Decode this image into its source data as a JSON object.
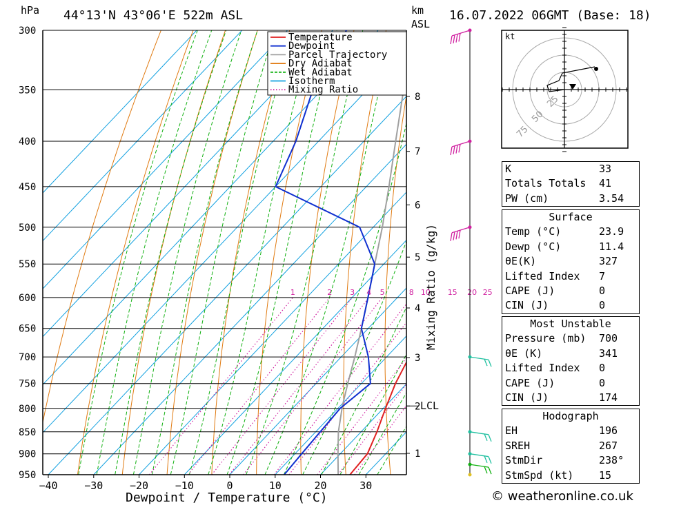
{
  "header": {
    "left_unit": "hPa",
    "location": "44°13'N  43°06'E  522m  ASL",
    "km_label": "km",
    "asl_label": "ASL",
    "datetime": "16.07.2022  06GMT  (Base: 18)"
  },
  "chart_data": {
    "type": "skew-t",
    "xlabel": "Dewpoint / Temperature (°C)",
    "ylabel_right": "Mixing Ratio (g/kg)",
    "pressure_levels": [
      300,
      350,
      400,
      450,
      500,
      550,
      600,
      650,
      700,
      750,
      800,
      850,
      900,
      950
    ],
    "temp_ticks": [
      -40,
      -30,
      -20,
      -10,
      0,
      10,
      20,
      30
    ],
    "height_ticks_km": [
      1,
      2,
      3,
      4,
      5,
      6,
      7,
      8
    ],
    "lcl_label": "LCL",
    "lcl_pressure": 795,
    "mixing_ratio_labels": [
      "1",
      "2",
      "3",
      "4",
      "5",
      "8",
      "10",
      "15",
      "20",
      "25"
    ],
    "mixing_ratio_values": [
      1,
      2,
      3,
      4,
      5,
      8,
      10,
      15,
      20,
      25
    ],
    "legend": [
      "Temperature",
      "Dewpoint",
      "Parcel Trajectory",
      "Dry Adiabat",
      "Wet Adiabat",
      "Isotherm",
      "Mixing Ratio"
    ],
    "legend_colors": [
      "#e02020",
      "#1030d0",
      "#a0a0a0",
      "#e07a10",
      "#10b010",
      "#10a0e0",
      "#d020a0"
    ],
    "temperature": [
      [
        950,
        26.5
      ],
      [
        900,
        26
      ],
      [
        850,
        23.5
      ],
      [
        800,
        20.5
      ],
      [
        750,
        17.5
      ],
      [
        700,
        15
      ],
      [
        650,
        15.5
      ],
      [
        600,
        12.5
      ],
      [
        550,
        8.5
      ],
      [
        500,
        3
      ],
      [
        450,
        -5
      ],
      [
        400,
        -12.5
      ],
      [
        350,
        -20.5
      ],
      [
        300,
        -31
      ]
    ],
    "dewpoint": [
      [
        950,
        12
      ],
      [
        900,
        11.5
      ],
      [
        850,
        11
      ],
      [
        800,
        10.5
      ],
      [
        750,
        12
      ],
      [
        700,
        6
      ],
      [
        650,
        -1.5
      ],
      [
        600,
        -6.5
      ],
      [
        550,
        -12
      ],
      [
        500,
        -23
      ],
      [
        450,
        -50
      ],
      [
        400,
        -55
      ],
      [
        350,
        -62
      ],
      [
        300,
        -67
      ]
    ],
    "parcel": [
      [
        950,
        23.9
      ],
      [
        900,
        19.5
      ],
      [
        850,
        15
      ],
      [
        795,
        10.5
      ],
      [
        750,
        7
      ],
      [
        700,
        3
      ],
      [
        650,
        -1.5
      ],
      [
        600,
        -6.5
      ],
      [
        550,
        -12
      ],
      [
        500,
        -18
      ],
      [
        450,
        -25
      ],
      [
        400,
        -33
      ],
      [
        350,
        -42
      ],
      [
        300,
        -52
      ]
    ],
    "wind_barbs": [
      {
        "pressure": 300,
        "color": "#d020a0"
      },
      {
        "pressure": 400,
        "color": "#d020a0"
      },
      {
        "pressure": 500,
        "color": "#d020a0"
      },
      {
        "pressure": 700,
        "color": "#20c0a0"
      },
      {
        "pressure": 850,
        "color": "#20c0a0"
      },
      {
        "pressure": 900,
        "color": "#20c0a0"
      },
      {
        "pressure": 925,
        "color": "#10b010"
      },
      {
        "pressure": 950,
        "color": "#e0c020"
      }
    ]
  },
  "hodograph": {
    "unit": "kt",
    "rings": [
      "25",
      "50",
      "75"
    ]
  },
  "indices": {
    "k_label": "K",
    "k": "33",
    "tt_label": "Totals Totals",
    "tt": "41",
    "pw_label": "PW (cm)",
    "pw": "3.54"
  },
  "surface": {
    "title": "Surface",
    "temp_label": "Temp (°C)",
    "temp": "23.9",
    "dewp_label": "Dewp (°C)",
    "dewp": "11.4",
    "theta_label": "θE(K)",
    "theta": "327",
    "li_label": "Lifted Index",
    "li": "7",
    "cape_label": "CAPE (J)",
    "cape": "0",
    "cin_label": "CIN (J)",
    "cin": "0"
  },
  "most_unstable": {
    "title": "Most Unstable",
    "pressure_label": "Pressure (mb)",
    "pressure": "700",
    "theta_label": "θE (K)",
    "theta": "341",
    "li_label": "Lifted Index",
    "li": "0",
    "cape_label": "CAPE (J)",
    "cape": "0",
    "cin_label": "CIN (J)",
    "cin": "174"
  },
  "hodo_table": {
    "title": "Hodograph",
    "eh_label": "EH",
    "eh": "196",
    "sreh_label": "SREH",
    "sreh": "267",
    "stmdir_label": "StmDir",
    "stmdir": "238°",
    "stmspd_label": "StmSpd (kt)",
    "stmspd": "15"
  },
  "footer": "© weatheronline.co.uk"
}
